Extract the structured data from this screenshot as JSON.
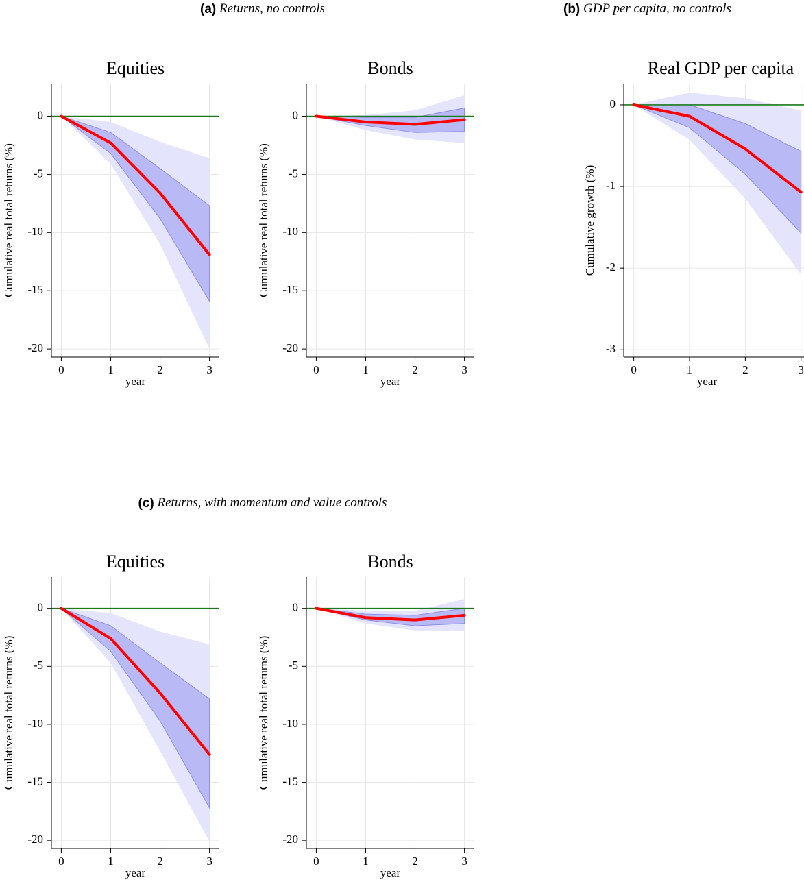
{
  "captions": [
    {
      "label": "(a)",
      "text": "Returns, no controls"
    },
    {
      "label": "(b)",
      "text": "GDP per capita, no controls"
    },
    {
      "label": "(c)",
      "text": "Returns, with momentum and value controls"
    }
  ],
  "chart_data": [
    {
      "type": "line",
      "title": "Equities",
      "xlabel": "year",
      "ylabel": "Cumulative real total returns (%)",
      "x": [
        0,
        1,
        2,
        3
      ],
      "xlim": [
        -0.2,
        3.2
      ],
      "xticks": [
        0,
        1,
        2,
        3
      ],
      "ylim": [
        -20.7,
        2.8
      ],
      "yticks": [
        0,
        -5,
        -10,
        -15,
        -20
      ],
      "grid": true,
      "hline": 0,
      "hline_color": "#1a7a1a",
      "values": [
        0,
        -2.3,
        -6.6,
        -11.9
      ],
      "color": "#ff0000",
      "band_outer": {
        "color": "#e4e4fc",
        "upper": [
          0,
          -0.5,
          -2.2,
          -3.6
        ],
        "lower": [
          0,
          -4.1,
          -11,
          -20
        ]
      },
      "band_inner": {
        "color": "#b9b9f5",
        "upper": [
          0,
          -1.4,
          -4.5,
          -7.7
        ],
        "lower": [
          0,
          -3.2,
          -8.8,
          -15.9
        ]
      }
    },
    {
      "type": "line",
      "title": "Bonds",
      "xlabel": "year",
      "ylabel": "Cumulative real total returns (%)",
      "x": [
        0,
        1,
        2,
        3
      ],
      "xlim": [
        -0.2,
        3.2
      ],
      "xticks": [
        0,
        1,
        2,
        3
      ],
      "ylim": [
        -20.7,
        2.8
      ],
      "yticks": [
        0,
        -5,
        -10,
        -15,
        -20
      ],
      "grid": true,
      "hline": 0,
      "hline_color": "#1a7a1a",
      "values": [
        0,
        -0.5,
        -0.7,
        -0.3
      ],
      "color": "#ff0000",
      "band_outer": {
        "color": "#e4e4fc",
        "upper": [
          0,
          0.1,
          0.5,
          1.8
        ],
        "lower": [
          0,
          -1.2,
          -2,
          -2.3
        ]
      },
      "band_inner": {
        "color": "#b9b9f5",
        "upper": [
          0,
          -0.1,
          -0.1,
          0.7
        ],
        "lower": [
          0,
          -0.8,
          -1.4,
          -1.3
        ]
      }
    },
    {
      "type": "line",
      "title": "Real GDP per capita",
      "xlabel": "year",
      "ylabel": "Cumulative growth (%)",
      "x": [
        0,
        1,
        2,
        3
      ],
      "xlim": [
        -0.18,
        3.2
      ],
      "xticks": [
        0,
        1,
        2,
        3
      ],
      "ylim": [
        -3.09,
        0.26
      ],
      "yticks": [
        0,
        -1,
        -2,
        -3
      ],
      "grid": true,
      "hline": 0,
      "hline_color": "#1a7a1a",
      "values": [
        0,
        -0.14,
        -0.54,
        -1.07
      ],
      "color": "#ff0000",
      "band_outer": {
        "color": "#e4e4fc",
        "upper": [
          0,
          0.15,
          0.08,
          -0.07
        ],
        "lower": [
          0,
          -0.43,
          -1.15,
          -2.08
        ]
      },
      "band_inner": {
        "color": "#b9b9f5",
        "upper": [
          0,
          0,
          -0.23,
          -0.57
        ],
        "lower": [
          0,
          -0.28,
          -0.85,
          -1.57
        ]
      }
    },
    {
      "type": "line",
      "title": "Equities",
      "xlabel": "year",
      "ylabel": "Cumulative real total returns (%)",
      "x": [
        0,
        1,
        2,
        3
      ],
      "xlim": [
        -0.2,
        3.2
      ],
      "xticks": [
        0,
        1,
        2,
        3
      ],
      "ylim": [
        -20.7,
        2.7
      ],
      "yticks": [
        0,
        -5,
        -10,
        -15,
        -20
      ],
      "grid": true,
      "hline": 0,
      "hline_color": "#1a7a1a",
      "values": [
        0,
        -2.6,
        -7.3,
        -12.6
      ],
      "color": "#ff0000",
      "band_outer": {
        "color": "#e4e4fc",
        "upper": [
          0,
          -0.4,
          -2,
          -3.1
        ],
        "lower": [
          0,
          -4.7,
          -12.3,
          -20.1
        ]
      },
      "band_inner": {
        "color": "#b9b9f5",
        "upper": [
          0,
          -1.5,
          -4.7,
          -7.8
        ],
        "lower": [
          0,
          -3.7,
          -9.7,
          -17.2
        ]
      }
    },
    {
      "type": "line",
      "title": "Bonds",
      "xlabel": "year",
      "ylabel": "Cumulative real total returns (%)",
      "x": [
        0,
        1,
        2,
        3
      ],
      "xlim": [
        -0.2,
        3.2
      ],
      "xticks": [
        0,
        1,
        2,
        3
      ],
      "ylim": [
        -20.7,
        2.7
      ],
      "yticks": [
        0,
        -5,
        -10,
        -15,
        -20
      ],
      "grid": true,
      "hline": 0,
      "hline_color": "#1a7a1a",
      "values": [
        0,
        -0.8,
        -1.0,
        -0.6
      ],
      "color": "#ff0000",
      "band_outer": {
        "color": "#e4e4fc",
        "upper": [
          0,
          -0.2,
          -0.2,
          0.8
        ],
        "lower": [
          0,
          -1.3,
          -1.9,
          -1.9
        ]
      },
      "band_inner": {
        "color": "#b9b9f5",
        "upper": [
          0,
          -0.5,
          -0.6,
          0
        ],
        "lower": [
          0,
          -1,
          -1.5,
          -1.3
        ]
      }
    }
  ]
}
